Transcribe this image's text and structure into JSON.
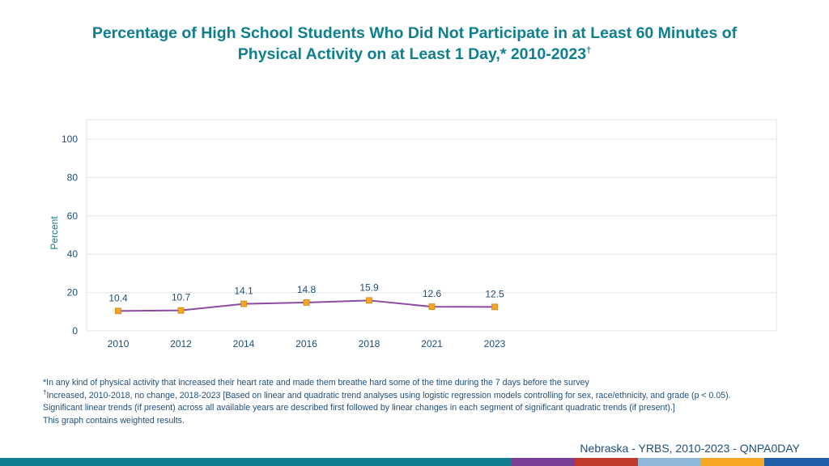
{
  "title": {
    "line1": "Percentage of High School Students Who Did Not Participate in at Least 60 Minutes of",
    "line2": "Physical Activity on at Least 1 Day,* 2010-2023",
    "line2_mark": "†"
  },
  "chart_data": {
    "type": "line",
    "title": "Percentage of High School Students Who Did Not Participate in at Least 60 Minutes of Physical Activity on at Least 1 Day,* 2010-2023†",
    "xlabel": "",
    "ylabel": "Percent",
    "ylim": [
      0,
      100
    ],
    "yticks": [
      0,
      20,
      40,
      60,
      80,
      100
    ],
    "grid": true,
    "legend": "none",
    "categories": [
      "2010",
      "2012",
      "2014",
      "2016",
      "2018",
      "2021",
      "2023"
    ],
    "series": [
      {
        "values": [
          10.4,
          10.7,
          14.1,
          14.8,
          15.9,
          12.6,
          12.5
        ],
        "labels": [
          "10.4",
          "10.7",
          "14.1",
          "14.8",
          "15.9",
          "12.6",
          "12.5"
        ],
        "line_color": "#8e4a9e",
        "marker_color": "#f5a623"
      }
    ]
  },
  "footnotes": {
    "note1": "*In any kind of physical activity that increased their heart rate and made them breathe hard some of the time during the 7 days before the survey",
    "note2_mark": "†",
    "note2": "Increased, 2010-2018, no change, 2018-2023 [Based on linear and quadratic trend analyses using logistic regression models controlling for sex, race/ethnicity, and grade (p < 0.05). Significant linear trends (if present) across all available years are described first followed by linear changes in each segment of significant quadratic trends (if present).]",
    "note3": "This graph contains weighted results."
  },
  "source": "Nebraska - YRBS, 2010-2023 - QNPA0DAY",
  "colors": {
    "title": "#0e7f8f",
    "axis_text": "#1f4e79",
    "bottom_bar": [
      "#0e7f8f",
      "#7b3f98",
      "#c0392b",
      "#8fb8d8",
      "#f5a623",
      "#1f5fa8"
    ]
  }
}
